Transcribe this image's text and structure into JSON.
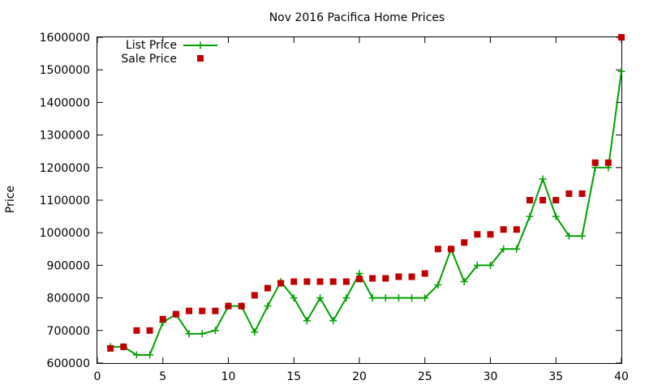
{
  "chart_data": {
    "type": "line",
    "title": "Nov 2016 Pacifica Home Prices",
    "xlabel": "",
    "ylabel": "Price",
    "xlim": [
      0,
      40
    ],
    "ylim": [
      600000,
      1600000
    ],
    "x_ticks": [
      0,
      5,
      10,
      15,
      20,
      25,
      30,
      35,
      40
    ],
    "y_ticks": [
      600000,
      700000,
      800000,
      900000,
      1000000,
      1100000,
      1200000,
      1300000,
      1400000,
      1500000,
      1600000
    ],
    "grid": false,
    "legend_position": "top-left",
    "series": [
      {
        "name": "List Price",
        "style": "line-with-plus",
        "color": "#00a000",
        "x": [
          1,
          2,
          3,
          4,
          5,
          6,
          7,
          8,
          9,
          10,
          11,
          12,
          13,
          14,
          15,
          16,
          17,
          18,
          19,
          20,
          21,
          22,
          23,
          24,
          25,
          26,
          27,
          28,
          29,
          30,
          31,
          32,
          33,
          34,
          35,
          36,
          37,
          38,
          39,
          40
        ],
        "values": [
          650000,
          650000,
          625000,
          625000,
          725000,
          750000,
          690000,
          690000,
          700000,
          775000,
          775000,
          695000,
          775000,
          850000,
          800000,
          730000,
          800000,
          730000,
          800000,
          875000,
          800000,
          800000,
          800000,
          800000,
          800000,
          840000,
          950000,
          850000,
          900000,
          900000,
          950000,
          950000,
          1050000,
          1165000,
          1050000,
          990000,
          990000,
          1200000,
          1200000,
          1495000
        ]
      },
      {
        "name": "Sale Price",
        "style": "square-points",
        "color": "#c00000",
        "x": [
          1,
          2,
          3,
          4,
          5,
          6,
          7,
          8,
          9,
          10,
          11,
          12,
          13,
          14,
          15,
          16,
          17,
          18,
          19,
          20,
          21,
          22,
          23,
          24,
          25,
          26,
          27,
          28,
          29,
          30,
          31,
          32,
          33,
          34,
          35,
          36,
          37,
          38,
          39,
          40
        ],
        "values": [
          645000,
          650000,
          700000,
          700000,
          735000,
          750000,
          760000,
          760000,
          760000,
          775000,
          775000,
          808000,
          830000,
          845000,
          850000,
          850000,
          850000,
          850000,
          850000,
          858000,
          860000,
          860000,
          865000,
          865000,
          875000,
          950000,
          950000,
          970000,
          995000,
          995000,
          1010000,
          1010000,
          1100000,
          1100000,
          1100000,
          1120000,
          1120000,
          1215000,
          1215000,
          1600000
        ]
      }
    ]
  }
}
